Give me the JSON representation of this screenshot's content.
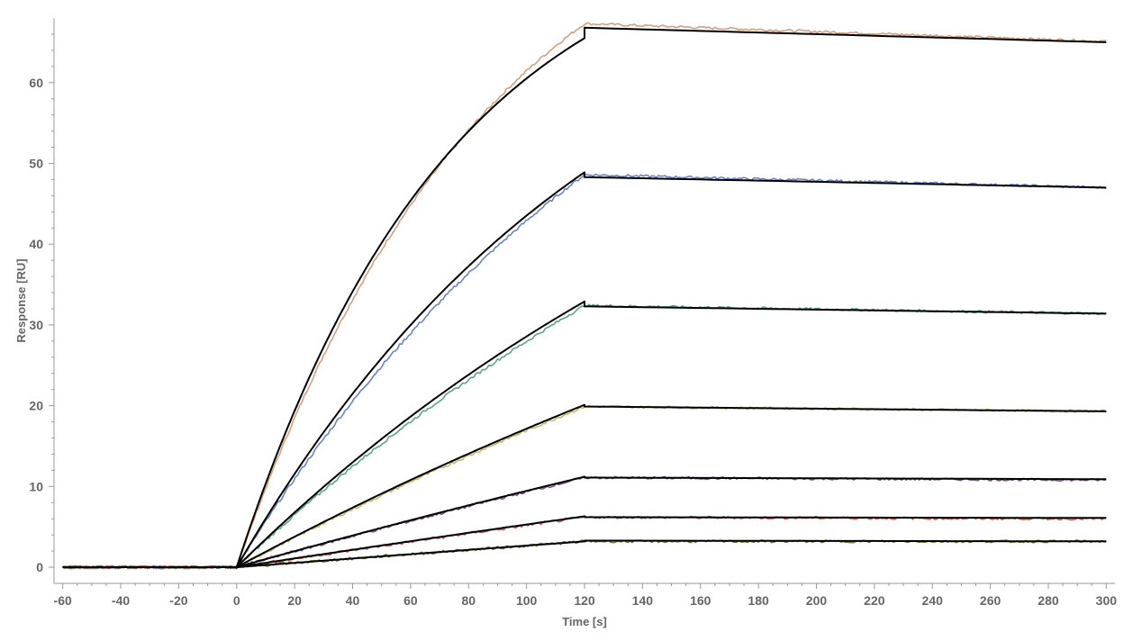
{
  "chart_data": {
    "type": "line",
    "title": "",
    "xlabel": "Time [s]",
    "ylabel": "Response [RU]",
    "xlim": [
      -63,
      303
    ],
    "ylim": [
      -2,
      68
    ],
    "x_ticks": [
      -60,
      -40,
      -20,
      0,
      20,
      40,
      60,
      80,
      100,
      120,
      140,
      160,
      180,
      200,
      220,
      240,
      260,
      280,
      300
    ],
    "y_ticks": [
      0,
      10,
      20,
      30,
      40,
      50,
      60
    ],
    "x_tick_labels": [
      "-60",
      "-40",
      "-20",
      "0",
      "20",
      "40",
      "60",
      "80",
      "100",
      "120",
      "140",
      "160",
      "180",
      "200",
      "220",
      "240",
      "260",
      "280",
      "300"
    ],
    "y_tick_labels": [
      "0",
      "10",
      "20",
      "30",
      "40",
      "50",
      "60"
    ],
    "grid": false,
    "legend": "none",
    "injection_start_s": 0,
    "injection_end_s": 120,
    "series": [
      {
        "color": "#d4a080",
        "association_plateau": 88,
        "association_kobs": 0.0115,
        "end_of_association": 67.3,
        "end_of_dissociation": 65.1
      },
      {
        "color": "#6a84c4",
        "association_plateau": 88,
        "association_kobs": 0.0065,
        "end_of_association": 48.6,
        "end_of_dissociation": 47.0
      },
      {
        "color": "#5aa882",
        "association_plateau": 88,
        "association_kobs": 0.0038,
        "end_of_association": 32.4,
        "end_of_dissociation": 31.4
      },
      {
        "color": "#c8b86e",
        "association_plateau": 88,
        "association_kobs": 0.0021,
        "end_of_association": 19.9,
        "end_of_dissociation": 19.3
      },
      {
        "color": "#7e4f82",
        "association_plateau": 88,
        "association_kobs": 0.0011,
        "end_of_association": 11.1,
        "end_of_dissociation": 10.8
      },
      {
        "color": "#c85a5a",
        "association_plateau": 88,
        "association_kobs": 0.0006,
        "end_of_association": 6.2,
        "end_of_dissociation": 6.0
      },
      {
        "color": "#6e7a3c",
        "association_plateau": 88,
        "association_kobs": 0.0003,
        "end_of_association": 3.2,
        "end_of_dissociation": 3.2
      }
    ],
    "fit_color": "#000000",
    "fit_series": [
      {
        "end_of_association": 65.5,
        "start_of_dissociation": 66.8,
        "end_of_dissociation": 65.0
      },
      {
        "end_of_association": 48.9,
        "start_of_dissociation": 48.3,
        "end_of_dissociation": 47.0
      },
      {
        "end_of_association": 32.9,
        "start_of_dissociation": 32.3,
        "end_of_dissociation": 31.4
      },
      {
        "end_of_association": 20.1,
        "start_of_dissociation": 19.9,
        "end_of_dissociation": 19.3
      },
      {
        "end_of_association": 11.2,
        "start_of_dissociation": 11.1,
        "end_of_dissociation": 10.9
      },
      {
        "end_of_association": 6.3,
        "start_of_dissociation": 6.2,
        "end_of_dissociation": 6.1
      },
      {
        "end_of_association": 3.2,
        "start_of_dissociation": 3.3,
        "end_of_dissociation": 3.2
      }
    ],
    "colors": {
      "axis": "#9a9a9a",
      "labels": "#666666"
    }
  }
}
